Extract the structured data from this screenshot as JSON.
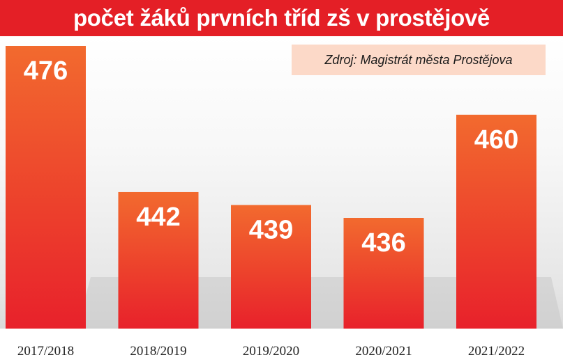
{
  "title": "počet žáků prvních tříd zš v prostějově",
  "source": "Zdroj: Magistrát města Prostějova",
  "colors": {
    "title_bg": "#e41f26",
    "bar_top": "#f26a2e",
    "bar_bottom": "#e8212b",
    "source_bg": "#fcd9c8"
  },
  "chart_data": {
    "type": "bar",
    "title": "počet žáků prvních tříd zš v prostějově",
    "categories": [
      "2017/2018",
      "2018/2019",
      "2019/2020",
      "2020/2021",
      "2021/2022"
    ],
    "values": [
      476,
      442,
      439,
      436,
      460
    ],
    "data_labels": [
      "476",
      "442",
      "439",
      "436",
      "460"
    ],
    "xlabel": "",
    "ylabel": "",
    "grid": false,
    "legend": "none"
  }
}
